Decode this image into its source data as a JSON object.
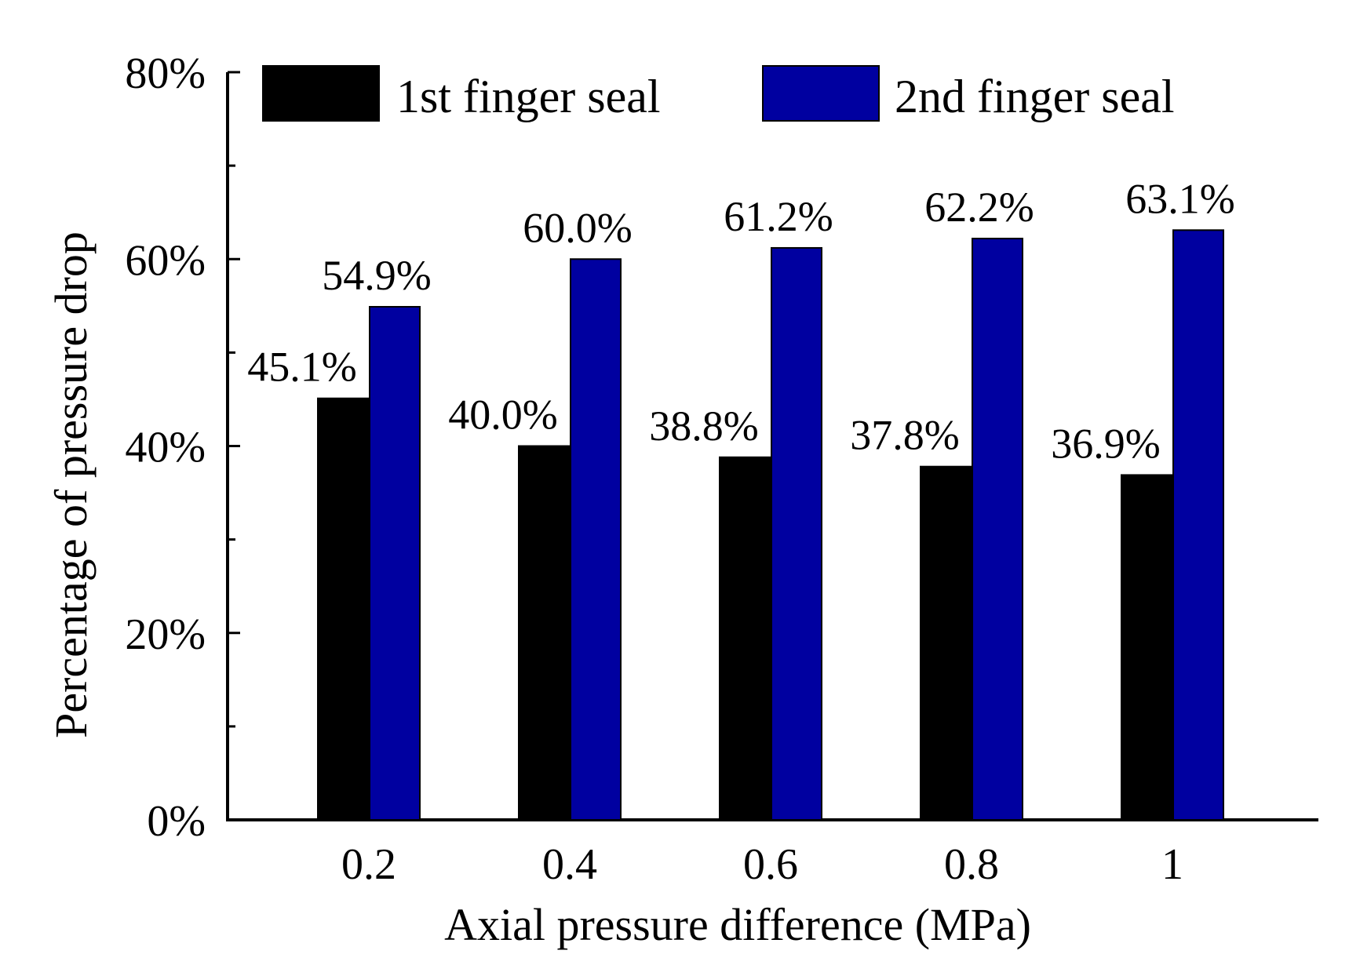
{
  "chart_data": {
    "type": "bar",
    "title": "",
    "xlabel": "Axial pressure difference (MPa)",
    "ylabel": "Percentage of pressure drop",
    "categories": [
      "0.2",
      "0.4",
      "0.6",
      "0.8",
      "1"
    ],
    "ylim": [
      0,
      80
    ],
    "yticks": [
      0,
      20,
      40,
      60,
      80
    ],
    "ytick_labels": [
      "0%",
      "20%",
      "40%",
      "60%",
      "80%"
    ],
    "legend_position": "top",
    "series": [
      {
        "name": "1st finger seal",
        "color": "#000000",
        "values": [
          45.1,
          40.0,
          38.8,
          37.8,
          36.9
        ],
        "labels": [
          "45.1%",
          "40.0%",
          "38.8%",
          "37.8%",
          "36.9%"
        ]
      },
      {
        "name": "2nd finger seal",
        "color": "#0000a0",
        "values": [
          54.9,
          60.0,
          61.2,
          62.2,
          63.1
        ],
        "labels": [
          "54.9%",
          "60.0%",
          "61.2%",
          "62.2%",
          "63.1%"
        ]
      }
    ]
  }
}
